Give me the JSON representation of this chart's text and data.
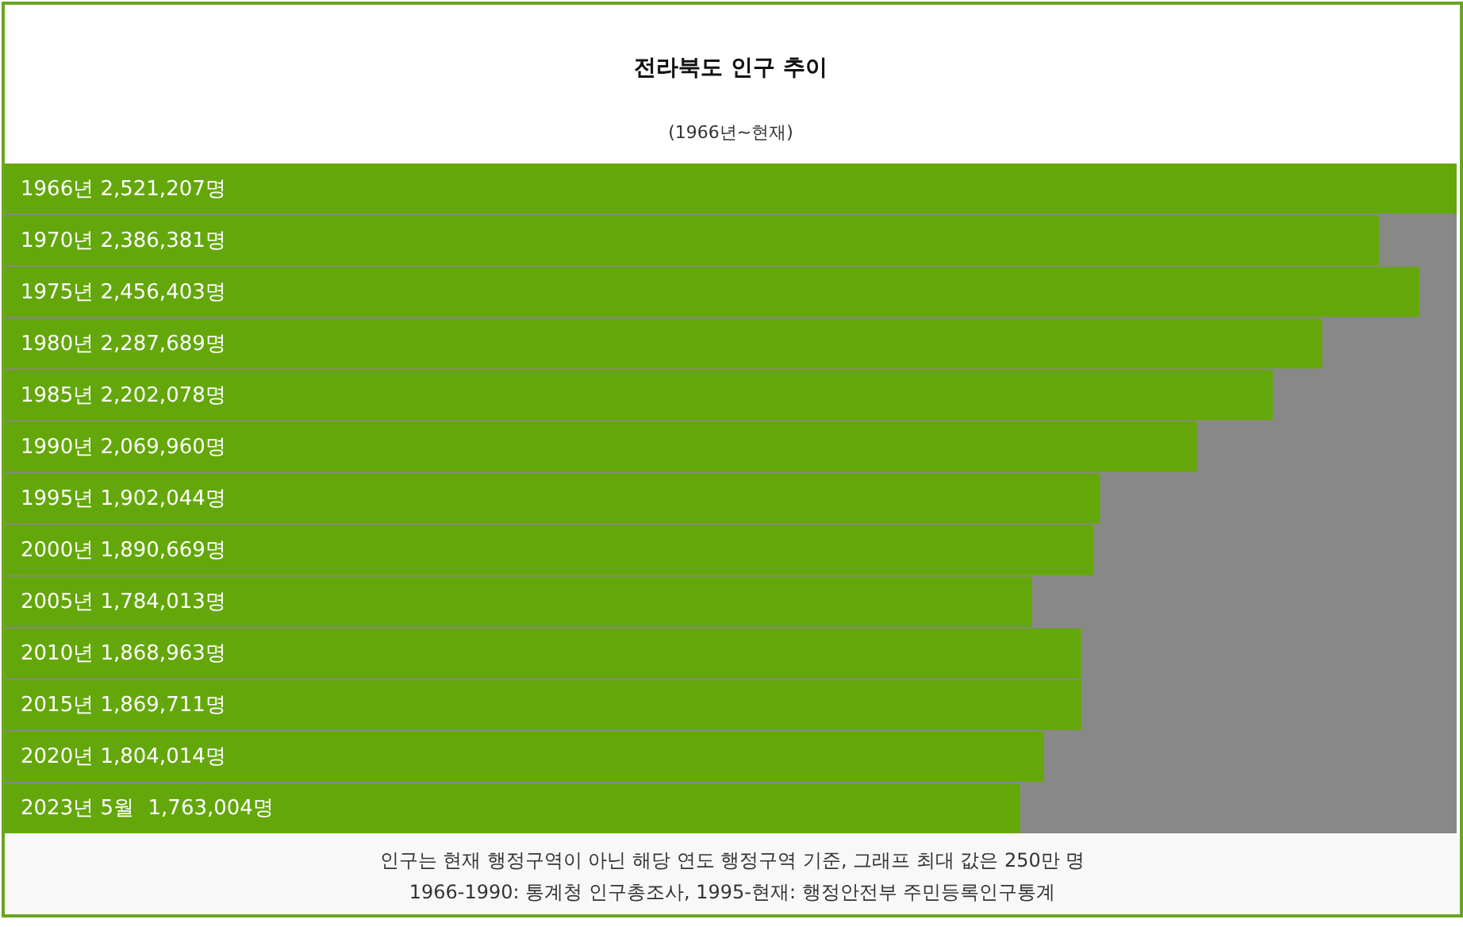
{
  "chart_data": {
    "type": "bar",
    "orientation": "horizontal",
    "title": "전라북도 인구 추이",
    "subtitle": "(1966년~현재)",
    "categories": [
      "1966년",
      "1970년",
      "1975년",
      "1980년",
      "1985년",
      "1990년",
      "1995년",
      "2000년",
      "2005년",
      "2010년",
      "2015년",
      "2020년",
      "2023년 5월"
    ],
    "values": [
      2521207,
      2386381,
      2456403,
      2287689,
      2202078,
      2069960,
      1902044,
      1890669,
      1784013,
      1868963,
      1869711,
      1804014,
      1763004
    ],
    "value_labels": [
      "2,521,207명",
      "2,386,381명",
      "2,456,403명",
      "2,287,689명",
      "2,202,078명",
      "2,069,960명",
      "1,902,044명",
      "1,890,669명",
      "1,784,013명",
      "1,868,963명",
      "1,869,711명",
      "1,804,014명",
      "1,763,004명"
    ],
    "color": "#64a70b",
    "tick_labels": false,
    "annotations": [
      "인구는 현재 행정구역이 아닌 해당 연도 행정구역 기준, 그래프 최대 값은 250만 명",
      "1966-1990: 통계청 인구총조사, 1995-현재: 행정안전부 주민등록인구통계"
    ]
  }
}
